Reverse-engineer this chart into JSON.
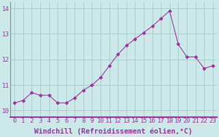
{
  "x": [
    0,
    1,
    2,
    3,
    4,
    5,
    6,
    7,
    8,
    9,
    10,
    11,
    12,
    13,
    14,
    15,
    16,
    17,
    18,
    19,
    20,
    21,
    22,
    23
  ],
  "y": [
    10.3,
    10.4,
    10.7,
    10.6,
    10.6,
    10.3,
    10.3,
    10.5,
    10.8,
    11.0,
    11.3,
    11.75,
    12.2,
    12.55,
    12.8,
    13.05,
    13.3,
    13.6,
    13.9,
    12.6,
    12.1,
    12.1,
    11.65,
    11.75
  ],
  "line_color": "#993399",
  "marker": "D",
  "marker_size": 2.5,
  "bg_color": "#cce8e8",
  "grid_color": "#aacccc",
  "xlabel": "Windchill (Refroidissement éolien,°C)",
  "xlabel_fontsize": 7.5,
  "tick_fontsize": 6.5,
  "ylim": [
    9.75,
    14.25
  ],
  "xlim": [
    -0.5,
    23.5
  ],
  "yticks": [
    10,
    11,
    12,
    13,
    14
  ],
  "xticks": [
    0,
    1,
    2,
    3,
    4,
    5,
    6,
    7,
    8,
    9,
    10,
    11,
    12,
    13,
    14,
    15,
    16,
    17,
    18,
    19,
    20,
    21,
    22,
    23
  ],
  "spine_color": "#888888",
  "separator_color": "#993399"
}
